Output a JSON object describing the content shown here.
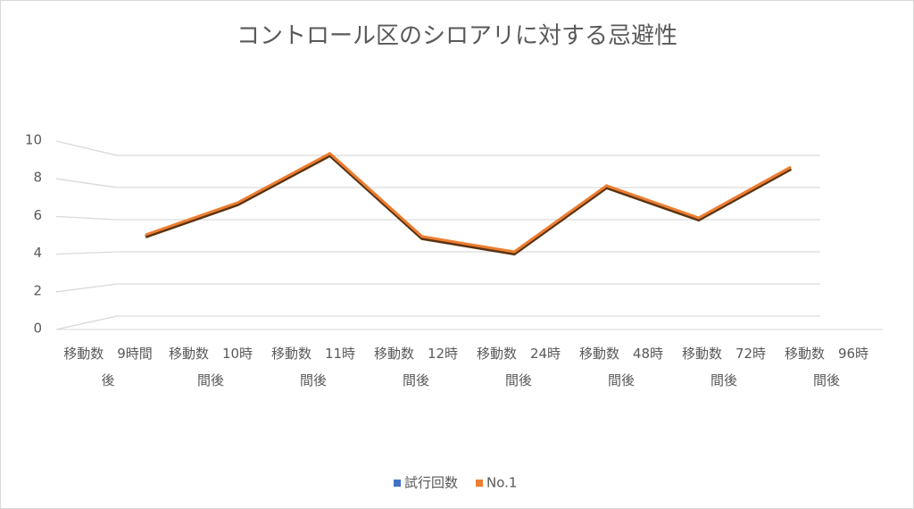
{
  "chart_data": {
    "type": "line",
    "title": "コントロール区のシロアリに対する忌避性",
    "categories": [
      "移動数　9時間後",
      "移動数　10時間後",
      "移動数　11時間後",
      "移動数　12時間後",
      "移動数　24時間後",
      "移動数　48時間後",
      "移動数　72時間後",
      "移動数　96時間後"
    ],
    "series": [
      {
        "name": "試行回数",
        "color": "#4472c4",
        "values": [
          null,
          null,
          null,
          null,
          null,
          null,
          null,
          null
        ]
      },
      {
        "name": "No.1",
        "color": "#ed7d31",
        "values": [
          5.0,
          6.9,
          9.8,
          4.9,
          4.0,
          7.9,
          6.0,
          9.0
        ]
      }
    ],
    "ylim": [
      0,
      10
    ],
    "yticks": [
      0,
      2,
      4,
      6,
      8,
      10
    ],
    "grid": true,
    "legend": "bottom"
  }
}
